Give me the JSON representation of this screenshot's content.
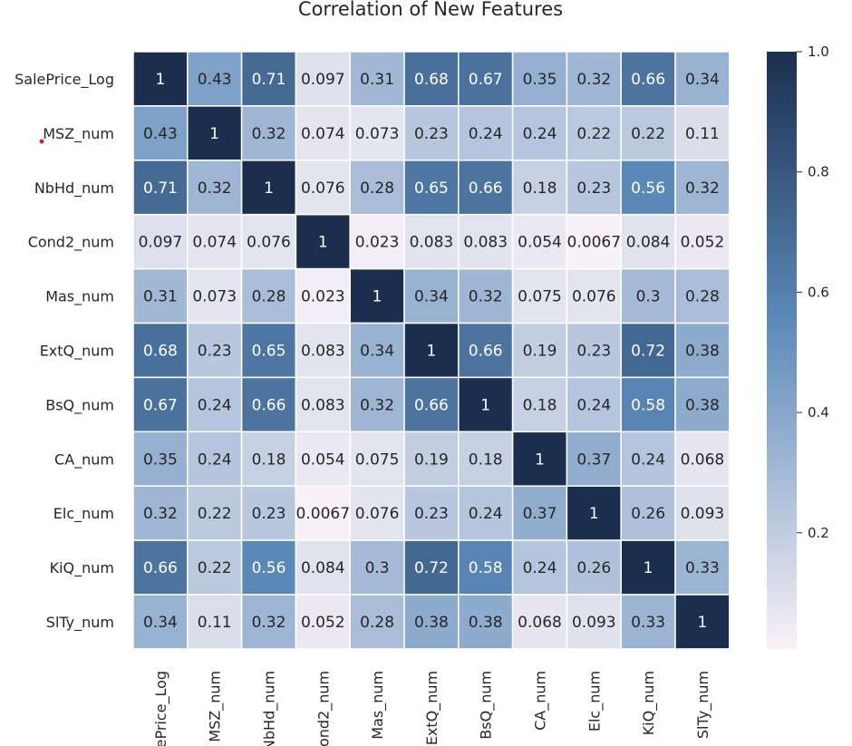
{
  "chart_data": {
    "type": "heatmap",
    "title": "Correlation of New Features",
    "row_labels": [
      "SalePrice_Log",
      "MSZ_num",
      "NbHd_num",
      "Cond2_num",
      "Mas_num",
      "ExtQ_num",
      "BsQ_num",
      "CA_num",
      "Elc_num",
      "KiQ_num",
      "SlTy_num"
    ],
    "col_labels": [
      "SalePrice_Log",
      "MSZ_num",
      "NbHd_num",
      "Cond2_num",
      "Mas_num",
      "ExtQ_num",
      "BsQ_num",
      "CA_num",
      "Elc_num",
      "KiQ_num",
      "SlTy_num"
    ],
    "values": [
      [
        1,
        0.43,
        0.71,
        0.097,
        0.31,
        0.68,
        0.67,
        0.35,
        0.32,
        0.66,
        0.34
      ],
      [
        0.43,
        1,
        0.32,
        0.074,
        0.073,
        0.23,
        0.24,
        0.24,
        0.22,
        0.22,
        0.11
      ],
      [
        0.71,
        0.32,
        1,
        0.076,
        0.28,
        0.65,
        0.66,
        0.18,
        0.23,
        0.56,
        0.32
      ],
      [
        0.097,
        0.074,
        0.076,
        1,
        0.023,
        0.083,
        0.083,
        0.054,
        0.0067,
        0.084,
        0.052
      ],
      [
        0.31,
        0.073,
        0.28,
        0.023,
        1,
        0.34,
        0.32,
        0.075,
        0.076,
        0.3,
        0.28
      ],
      [
        0.68,
        0.23,
        0.65,
        0.083,
        0.34,
        1,
        0.66,
        0.19,
        0.23,
        0.72,
        0.38
      ],
      [
        0.67,
        0.24,
        0.66,
        0.083,
        0.32,
        0.66,
        1,
        0.18,
        0.24,
        0.58,
        0.38
      ],
      [
        0.35,
        0.24,
        0.18,
        0.054,
        0.075,
        0.19,
        0.18,
        1,
        0.37,
        0.24,
        0.068
      ],
      [
        0.32,
        0.22,
        0.23,
        0.0067,
        0.076,
        0.23,
        0.24,
        0.37,
        1,
        0.26,
        0.093
      ],
      [
        0.66,
        0.22,
        0.56,
        0.084,
        0.3,
        0.72,
        0.58,
        0.24,
        0.26,
        1,
        0.33
      ],
      [
        0.34,
        0.11,
        0.32,
        0.052,
        0.28,
        0.38,
        0.38,
        0.068,
        0.093,
        0.33,
        1
      ]
    ],
    "colorbar": {
      "ticks": [
        1.0,
        0.8,
        0.6,
        0.4,
        0.2
      ],
      "tick_labels": [
        "1.0",
        "0.8",
        "0.6",
        "0.4",
        "0.2"
      ],
      "range": [
        0.0067,
        1.0
      ]
    },
    "colors": {
      "low": "#f8f1f7",
      "mid": "#5b8ab9",
      "high": "#1b2e4e",
      "grid_line": "#ffffff",
      "text_dark": "#262626",
      "text_light": "#ffffff"
    }
  }
}
